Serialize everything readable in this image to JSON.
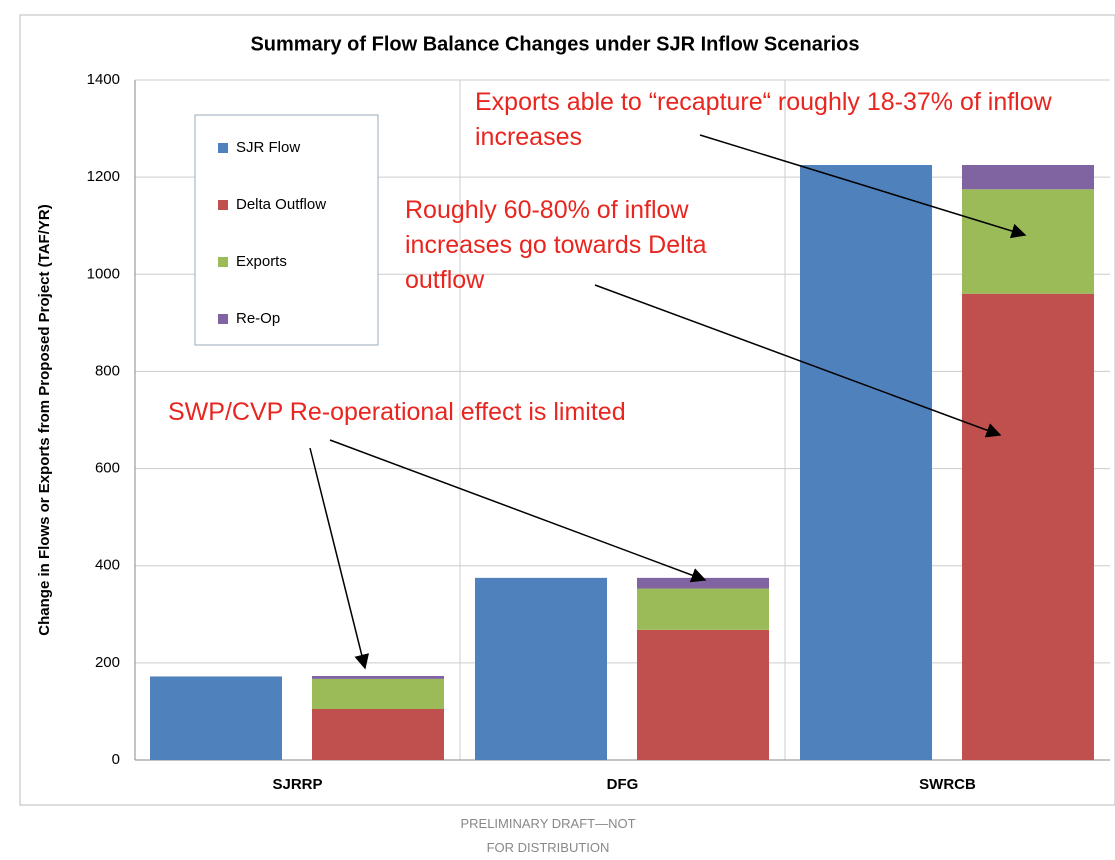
{
  "chart_data": {
    "type": "bar",
    "title": "Summary of Flow Balance Changes under SJR Inflow Scenarios",
    "y_label": "Change in Flows or Exports from Proposed Project (TAF/YR)",
    "categories": [
      "SJRRP",
      "DFG",
      "SWRCB"
    ],
    "series": [
      {
        "name": "SJR Flow",
        "color": "#4f81bd",
        "stack": 1,
        "values": [
          172,
          375,
          1225
        ]
      },
      {
        "name": "Delta Outflow",
        "color": "#c0504d",
        "stack": 2,
        "values": [
          105,
          268,
          960
        ]
      },
      {
        "name": "Exports",
        "color": "#9bbb59",
        "stack": 2,
        "values": [
          62,
          85,
          215
        ]
      },
      {
        "name": "Re-Op",
        "color": "#8064a2",
        "stack": 2,
        "values": [
          6,
          22,
          50
        ]
      }
    ],
    "ylim": [
      0,
      1400
    ],
    "yticks": [
      0,
      200,
      400,
      600,
      800,
      1000,
      1200,
      1400
    ],
    "grid": true,
    "annotations": [
      "Exports able to “recapture“ roughly 18-37% of inflow increases",
      "Roughly 60-80% of inflow increases go towards Delta outflow",
      "SWP/CVP Re-operational effect is limited"
    ],
    "footer": "PRELIMINARY DRAFT—NOT FOR DISTRIBUTION"
  }
}
